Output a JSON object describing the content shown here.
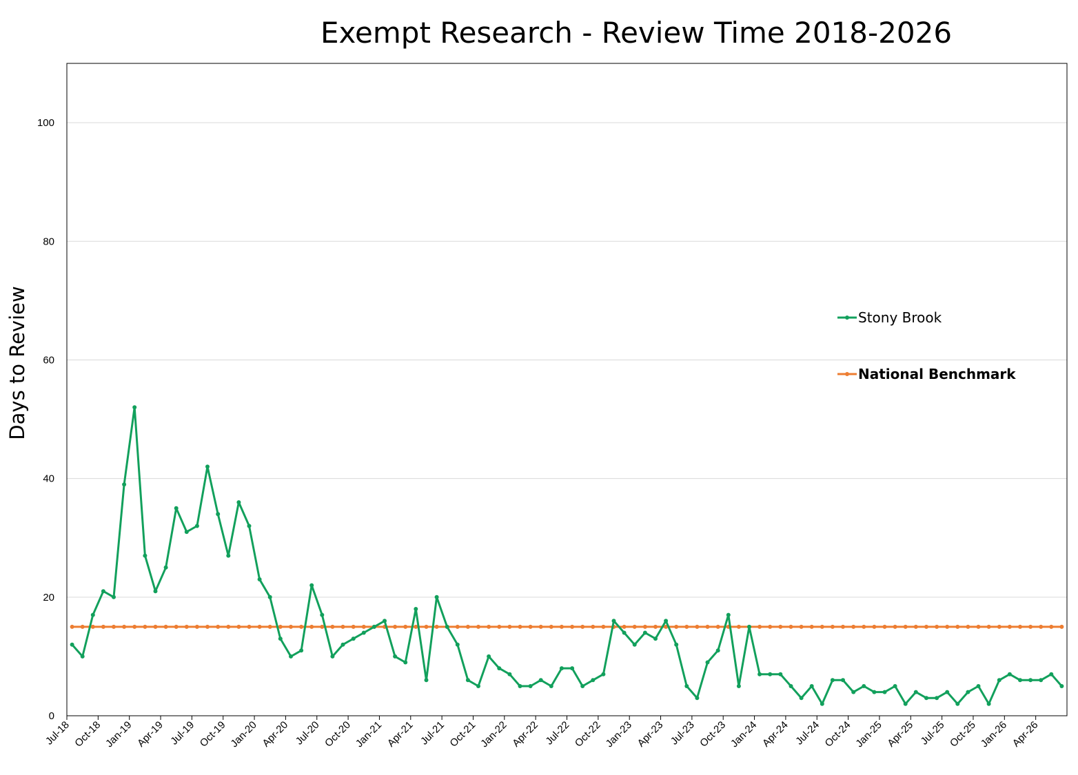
{
  "chart_data": {
    "type": "line",
    "title": "Exempt Research - Review Time 2018-2026",
    "xlabel": "",
    "ylabel": "Days to Review",
    "ylim": [
      0,
      110
    ],
    "yticks": [
      0,
      20,
      40,
      60,
      80,
      100
    ],
    "grid": "horizontal",
    "legend": "right",
    "x_tick_labels": [
      "Jul-18",
      "Oct-18",
      "Jan-19",
      "Apr-19",
      "Jul-19",
      "Oct-19",
      "Jan-20",
      "Apr-20",
      "Jul-20",
      "Oct-20",
      "Jan-21",
      "Apr-21",
      "Jul-21",
      "Oct-21",
      "Jan-22",
      "Apr-22",
      "Jul-22",
      "Oct-22",
      "Jan-23",
      "Apr-23",
      "Jul-23",
      "Oct-23",
      "Jan-24",
      "Apr-24",
      "Jul-24",
      "Oct-24",
      "Jan-25",
      "Apr-25",
      "Jul-25",
      "Oct-25",
      "Jan-26",
      "Apr-26"
    ],
    "colors": {
      "Stony Brook": "#12a05c",
      "National Benchmark": "#ed7d31",
      "grid": "#d9d9d9",
      "axis": "#000000"
    },
    "series": [
      {
        "name": "Stony Brook",
        "values": [
          12,
          10,
          17,
          21,
          20,
          39,
          52,
          27,
          21,
          25,
          35,
          31,
          32,
          42,
          34,
          27,
          36,
          32,
          23,
          20,
          13,
          10,
          11,
          22,
          17,
          10,
          12,
          13,
          14,
          15,
          16,
          10,
          9,
          18,
          6,
          20,
          15,
          12,
          6,
          5,
          10,
          8,
          7,
          5,
          5,
          6,
          5,
          8,
          8,
          5,
          6,
          7,
          16,
          14,
          12,
          14,
          13,
          16,
          12,
          5,
          3,
          9,
          11,
          17,
          5,
          15,
          7,
          7,
          7,
          5,
          3,
          5,
          2,
          6,
          6,
          4,
          5,
          4,
          4,
          5,
          2,
          4,
          3,
          3,
          4,
          2,
          4,
          5,
          2,
          6,
          7,
          6,
          6,
          6,
          7,
          5
        ]
      },
      {
        "name": "National Benchmark",
        "values": [
          15,
          15,
          15,
          15,
          15,
          15,
          15,
          15,
          15,
          15,
          15,
          15,
          15,
          15,
          15,
          15,
          15,
          15,
          15,
          15,
          15,
          15,
          15,
          15,
          15,
          15,
          15,
          15,
          15,
          15,
          15,
          15,
          15,
          15,
          15,
          15,
          15,
          15,
          15,
          15,
          15,
          15,
          15,
          15,
          15,
          15,
          15,
          15,
          15,
          15,
          15,
          15,
          15,
          15,
          15,
          15,
          15,
          15,
          15,
          15,
          15,
          15,
          15,
          15,
          15,
          15,
          15,
          15,
          15,
          15,
          15,
          15,
          15,
          15,
          15,
          15,
          15,
          15,
          15,
          15,
          15,
          15,
          15,
          15,
          15,
          15,
          15,
          15,
          15,
          15,
          15,
          15,
          15,
          15,
          15,
          15
        ]
      }
    ]
  }
}
